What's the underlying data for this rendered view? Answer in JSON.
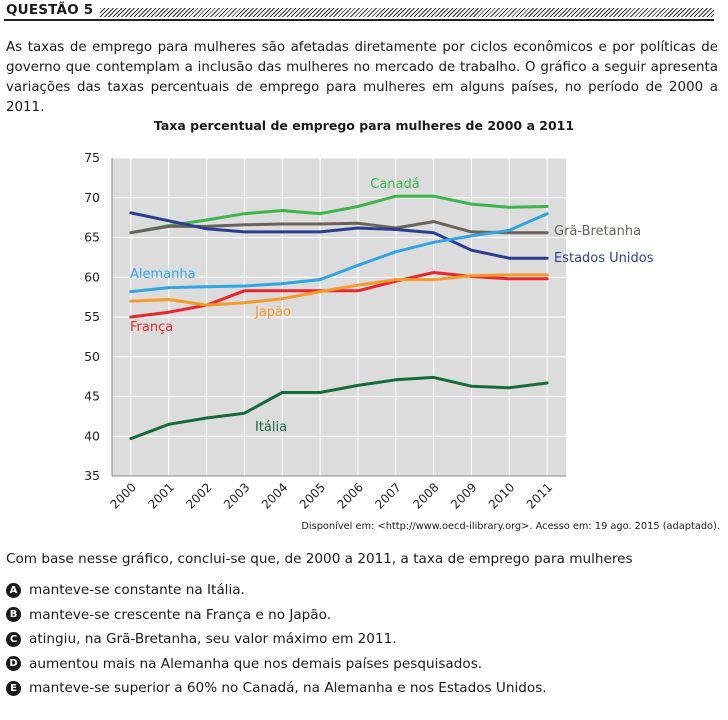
{
  "question": {
    "title": "QUESTÃO 5",
    "intro": "As taxas de emprego para mulheres são afetadas diretamente por ciclos econômicos e por políticas de governo que contemplam a inclusão das mulheres no mercado de trabalho. O gráfico a seguir apresenta variações das taxas percentuais de emprego para mulheres em alguns países, no período de 2000 a 2011.",
    "source": "Disponível em: <http://www.oecd-ilibrary.org>. Acesso em: 19 ago. 2015 (adaptado).",
    "stem": "Com base nesse gráfico, conclui-se que, de 2000 a 2011, a taxa de emprego para mulheres",
    "options": [
      {
        "letter": "A",
        "text": "manteve-se constante na Itália."
      },
      {
        "letter": "B",
        "text": "manteve-se crescente na França e no Japão."
      },
      {
        "letter": "C",
        "text": "atingiu, na Grã-Bretanha, seu valor máximo em 2011."
      },
      {
        "letter": "D",
        "text": "aumentou mais na Alemanha que nos demais países pesquisados."
      },
      {
        "letter": "E",
        "text": "manteve-se superior a 60% no Canadá, na Alemanha e nos Estados Unidos."
      }
    ]
  },
  "chart_data": {
    "type": "line",
    "title": "Taxa percentual de emprego para mulheres de 2000 a 2011",
    "xlabel": "",
    "ylabel": "",
    "x": [
      "2000",
      "2001",
      "2002",
      "2003",
      "2004",
      "2005",
      "2006",
      "2007",
      "2008",
      "2009",
      "2010",
      "2011"
    ],
    "yticks": [
      35,
      40,
      45,
      50,
      55,
      60,
      65,
      70,
      75
    ],
    "ylim": [
      35,
      75
    ],
    "grid": true,
    "series": [
      {
        "name": "Canadá",
        "color": "#3cb54a",
        "values": [
          65.6,
          66.5,
          67.2,
          68.0,
          68.4,
          68.0,
          68.9,
          70.2,
          70.2,
          69.2,
          68.8,
          68.9
        ]
      },
      {
        "name": "Grã-Bretanha",
        "color": "#6b625a",
        "values": [
          65.6,
          66.4,
          66.4,
          66.6,
          66.7,
          66.7,
          66.8,
          66.2,
          67.0,
          65.7,
          65.6,
          65.6
        ]
      },
      {
        "name": "Estados Unidos",
        "color": "#2a3d8f",
        "values": [
          68.1,
          67.1,
          66.1,
          65.7,
          65.7,
          65.7,
          66.2,
          66.0,
          65.6,
          63.4,
          62.4,
          62.4
        ]
      },
      {
        "name": "Alemanha",
        "color": "#2fa6e0",
        "values": [
          58.2,
          58.7,
          58.8,
          58.9,
          59.2,
          59.7,
          61.5,
          63.2,
          64.4,
          65.2,
          65.9,
          68.0
        ]
      },
      {
        "name": "França",
        "color": "#e8262b",
        "values": [
          55.0,
          55.6,
          56.5,
          58.3,
          58.3,
          58.3,
          58.3,
          59.5,
          60.6,
          60.1,
          59.8,
          59.8
        ]
      },
      {
        "name": "Japão",
        "color": "#f39a2a",
        "values": [
          57.0,
          57.2,
          56.5,
          56.8,
          57.3,
          58.2,
          59.0,
          59.7,
          59.7,
          60.2,
          60.3,
          60.3
        ]
      },
      {
        "name": "Itália",
        "color": "#166b3a",
        "values": [
          39.7,
          41.5,
          42.3,
          42.9,
          45.5,
          45.5,
          46.4,
          47.1,
          47.4,
          46.3,
          46.1,
          46.7
        ]
      }
    ]
  }
}
